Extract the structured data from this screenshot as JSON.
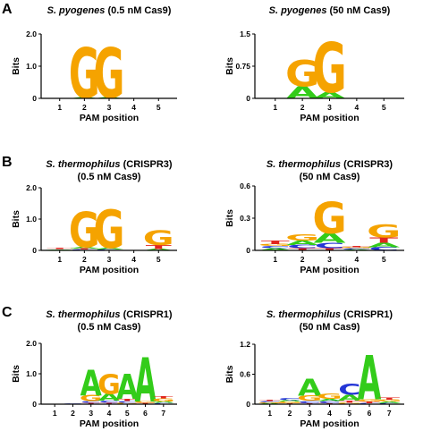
{
  "panel_letters": [
    "A",
    "B",
    "C"
  ],
  "colors": {
    "G": "#f5a300",
    "A": "#33cc1a",
    "C": "#2436d6",
    "T": "#e0261f"
  },
  "chart_data": [
    {
      "type": "sequence-logo",
      "panel": "A",
      "title_italic": "S. pyogenes",
      "title_rest": "(0.5 nM Cas9)",
      "title_line2": "",
      "ylabel": "Bits",
      "xlabel": "PAM position",
      "ylim": [
        0,
        2.0
      ],
      "yticks": [
        {
          "v": 0,
          "label": "0"
        },
        {
          "v": 1.0,
          "label": "1.0"
        },
        {
          "v": 2.0,
          "label": "2.0"
        }
      ],
      "positions": [
        [],
        [
          {
            "b": "A",
            "h": 0.03
          },
          {
            "b": "G",
            "h": 1.56
          }
        ],
        [
          {
            "b": "A",
            "h": 0.03
          },
          {
            "b": "G",
            "h": 1.56
          }
        ],
        [],
        []
      ]
    },
    {
      "type": "sequence-logo",
      "panel": "A",
      "title_italic": "S. pyogenes",
      "title_rest": "(50 nM Cas9)",
      "title_line2": "",
      "ylabel": "Bits",
      "xlabel": "PAM position",
      "ylim": [
        0,
        1.5
      ],
      "yticks": [
        {
          "v": 0,
          "label": "0"
        },
        {
          "v": 0.75,
          "label": "0.75"
        },
        {
          "v": 1.5,
          "label": "1.5"
        }
      ],
      "positions": [
        [],
        [
          {
            "b": "A",
            "h": 0.28
          },
          {
            "b": "G",
            "h": 0.61
          }
        ],
        [
          {
            "b": "A",
            "h": 0.15
          },
          {
            "b": "G",
            "h": 1.17
          }
        ],
        [],
        []
      ]
    },
    {
      "type": "sequence-logo",
      "panel": "B",
      "title_italic": "S. thermophilus",
      "title_rest": "(CRISPR3)",
      "title_line2": "(0.5 nM Cas9)",
      "ylabel": "Bits",
      "xlabel": "PAM position",
      "ylim": [
        0,
        2.0
      ],
      "yticks": [
        {
          "v": 0,
          "label": "0"
        },
        {
          "v": 1.0,
          "label": "1.0"
        },
        {
          "v": 2.0,
          "label": "2.0"
        }
      ],
      "positions": [
        [
          {
            "b": "C",
            "h": 0.02
          },
          {
            "b": "A",
            "h": 0.02
          },
          {
            "b": "T",
            "h": 0.03
          }
        ],
        [
          {
            "b": "C",
            "h": 0.03
          },
          {
            "b": "T",
            "h": 0.03
          },
          {
            "b": "A",
            "h": 0.06
          },
          {
            "b": "G",
            "h": 1.13
          }
        ],
        [
          {
            "b": "C",
            "h": 0.03
          },
          {
            "b": "A",
            "h": 0.05
          },
          {
            "b": "G",
            "h": 1.22
          }
        ],
        [],
        [
          {
            "b": "A",
            "h": 0.05
          },
          {
            "b": "T",
            "h": 0.12
          },
          {
            "b": "G",
            "h": 0.46
          }
        ]
      ]
    },
    {
      "type": "sequence-logo",
      "panel": "B",
      "title_italic": "S. thermophilus",
      "title_rest": "(CRISPR3)",
      "title_line2": "(50 nM Cas9)",
      "ylabel": "Bits",
      "xlabel": "PAM position",
      "ylim": [
        0,
        0.6
      ],
      "yticks": [
        {
          "v": 0,
          "label": "0"
        },
        {
          "v": 0.3,
          "label": "0.3"
        },
        {
          "v": 0.6,
          "label": "0.6"
        }
      ],
      "positions": [
        [
          {
            "b": "A",
            "h": 0.02
          },
          {
            "b": "C",
            "h": 0.02
          },
          {
            "b": "G",
            "h": 0.02
          },
          {
            "b": "T",
            "h": 0.03
          }
        ],
        [
          {
            "b": "T",
            "h": 0.02
          },
          {
            "b": "C",
            "h": 0.03
          },
          {
            "b": "A",
            "h": 0.04
          },
          {
            "b": "G",
            "h": 0.06
          }
        ],
        [
          {
            "b": "T",
            "h": 0.02
          },
          {
            "b": "C",
            "h": 0.05
          },
          {
            "b": "A",
            "h": 0.09
          },
          {
            "b": "G",
            "h": 0.29
          }
        ],
        [
          {
            "b": "A",
            "h": 0.01
          },
          {
            "b": "C",
            "h": 0.01
          },
          {
            "b": "G",
            "h": 0.01
          },
          {
            "b": "T",
            "h": 0.01
          }
        ],
        [
          {
            "b": "C",
            "h": 0.03
          },
          {
            "b": "A",
            "h": 0.04
          },
          {
            "b": "T",
            "h": 0.05
          },
          {
            "b": "G",
            "h": 0.12
          }
        ]
      ]
    },
    {
      "type": "sequence-logo",
      "panel": "C",
      "title_italic": "S. thermophilus",
      "title_rest": "(CRISPR1)",
      "title_line2": "(0.5 nM Cas9)",
      "ylabel": "Bits",
      "xlabel": "PAM position",
      "ylim": [
        0,
        2.0
      ],
      "yticks": [
        {
          "v": 0,
          "label": "0"
        },
        {
          "v": 1.0,
          "label": "1.0"
        },
        {
          "v": 2.0,
          "label": "2.0"
        }
      ],
      "positions": [
        [],
        [
          {
            "b": "A",
            "h": 0.02
          },
          {
            "b": "C",
            "h": 0.02
          }
        ],
        [
          {
            "b": "T",
            "h": 0.04
          },
          {
            "b": "C",
            "h": 0.06
          },
          {
            "b": "G",
            "h": 0.2
          },
          {
            "b": "A",
            "h": 0.85
          }
        ],
        [
          {
            "b": "T",
            "h": 0.04
          },
          {
            "b": "C",
            "h": 0.08
          },
          {
            "b": "A",
            "h": 0.22
          },
          {
            "b": "G",
            "h": 0.65
          }
        ],
        [
          {
            "b": "G",
            "h": 0.05
          },
          {
            "b": "C",
            "h": 0.05
          },
          {
            "b": "T",
            "h": 0.08
          },
          {
            "b": "A",
            "h": 0.83
          }
        ],
        [
          {
            "b": "T",
            "h": 0.04
          },
          {
            "b": "G",
            "h": 0.05
          },
          {
            "b": "A",
            "h": 1.46
          }
        ],
        [
          {
            "b": "C",
            "h": 0.04
          },
          {
            "b": "A",
            "h": 0.05
          },
          {
            "b": "G",
            "h": 0.1
          },
          {
            "b": "T",
            "h": 0.08
          }
        ]
      ]
    },
    {
      "type": "sequence-logo",
      "panel": "C",
      "title_italic": "S. thermophilus",
      "title_rest": "(CRISPR1)",
      "title_line2": "(50 nM Cas9)",
      "ylabel": "Bits",
      "xlabel": "PAM position",
      "ylim": [
        0,
        1.2
      ],
      "yticks": [
        {
          "v": 0,
          "label": "0"
        },
        {
          "v": 0.6,
          "label": "0.6"
        },
        {
          "v": 1.2,
          "label": "1.2"
        }
      ],
      "positions": [
        [
          {
            "b": "A",
            "h": 0.02
          },
          {
            "b": "G",
            "h": 0.02
          },
          {
            "b": "C",
            "h": 0.02
          },
          {
            "b": "T",
            "h": 0.02
          }
        ],
        [
          {
            "b": "T",
            "h": 0.02
          },
          {
            "b": "G",
            "h": 0.03
          },
          {
            "b": "A",
            "h": 0.03
          },
          {
            "b": "C",
            "h": 0.05
          }
        ],
        [
          {
            "b": "T",
            "h": 0.02
          },
          {
            "b": "C",
            "h": 0.05
          },
          {
            "b": "G",
            "h": 0.1
          },
          {
            "b": "A",
            "h": 0.34
          }
        ],
        [
          {
            "b": "T",
            "h": 0.02
          },
          {
            "b": "C",
            "h": 0.04
          },
          {
            "b": "A",
            "h": 0.05
          },
          {
            "b": "G",
            "h": 0.1
          }
        ],
        [
          {
            "b": "G",
            "h": 0.03
          },
          {
            "b": "T",
            "h": 0.04
          },
          {
            "b": "A",
            "h": 0.12
          },
          {
            "b": "C",
            "h": 0.22
          }
        ],
        [
          {
            "b": "C",
            "h": 0.02
          },
          {
            "b": "T",
            "h": 0.03
          },
          {
            "b": "G",
            "h": 0.05
          },
          {
            "b": "A",
            "h": 0.88
          }
        ],
        [
          {
            "b": "C",
            "h": 0.02
          },
          {
            "b": "A",
            "h": 0.03
          },
          {
            "b": "G",
            "h": 0.04
          },
          {
            "b": "T",
            "h": 0.05
          }
        ]
      ]
    }
  ]
}
